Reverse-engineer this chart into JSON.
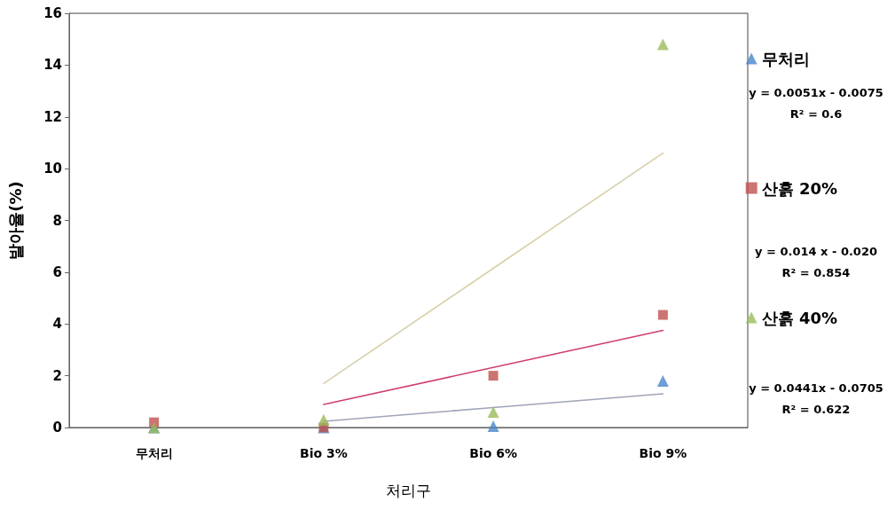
{
  "chart_data": {
    "type": "scatter",
    "xlabel": "처리구",
    "ylabel": "발아율(%)",
    "categories": [
      "무처리",
      "Bio 3%",
      "Bio 6%",
      "Bio 9%"
    ],
    "ylim": [
      0,
      16
    ],
    "yticks": [
      0,
      2,
      4,
      6,
      8,
      10,
      12,
      14,
      16
    ],
    "grid": false,
    "legend": "right",
    "series": [
      {
        "name": "무처리",
        "color": "#4a86c8",
        "marker": "triangle",
        "values": [
          0,
          0,
          0.05,
          1.8
        ]
      },
      {
        "name": "산흙 20%",
        "color": "#c0504d",
        "marker": "square",
        "values": [
          0.2,
          0,
          2.0,
          4.35
        ]
      },
      {
        "name": "산흙 40%",
        "color": "#9bbb59",
        "marker": "triangle",
        "values": [
          0,
          0.3,
          0.6,
          14.8
        ]
      },
      {
        "type": "line",
        "color": "#a0a4b8",
        "marker": "none",
        "values": [
          null,
          0.24,
          0.77,
          1.3
        ]
      },
      {
        "type": "line",
        "color": "#d0406a",
        "marker": "none",
        "values": [
          null,
          0.89,
          2.32,
          3.75
        ]
      },
      {
        "type": "line",
        "color": "#d8d0a8",
        "marker": "none",
        "values": [
          null,
          1.7,
          6.15,
          10.6
        ]
      }
    ],
    "annotations": [
      "y = 0.0051x - 0.0075\nR² = 0.6",
      "y = 0.014 x - 0.020\nR² = 0.854",
      "y = 0.0441x - 0.0705\nR² = 0.622"
    ]
  }
}
